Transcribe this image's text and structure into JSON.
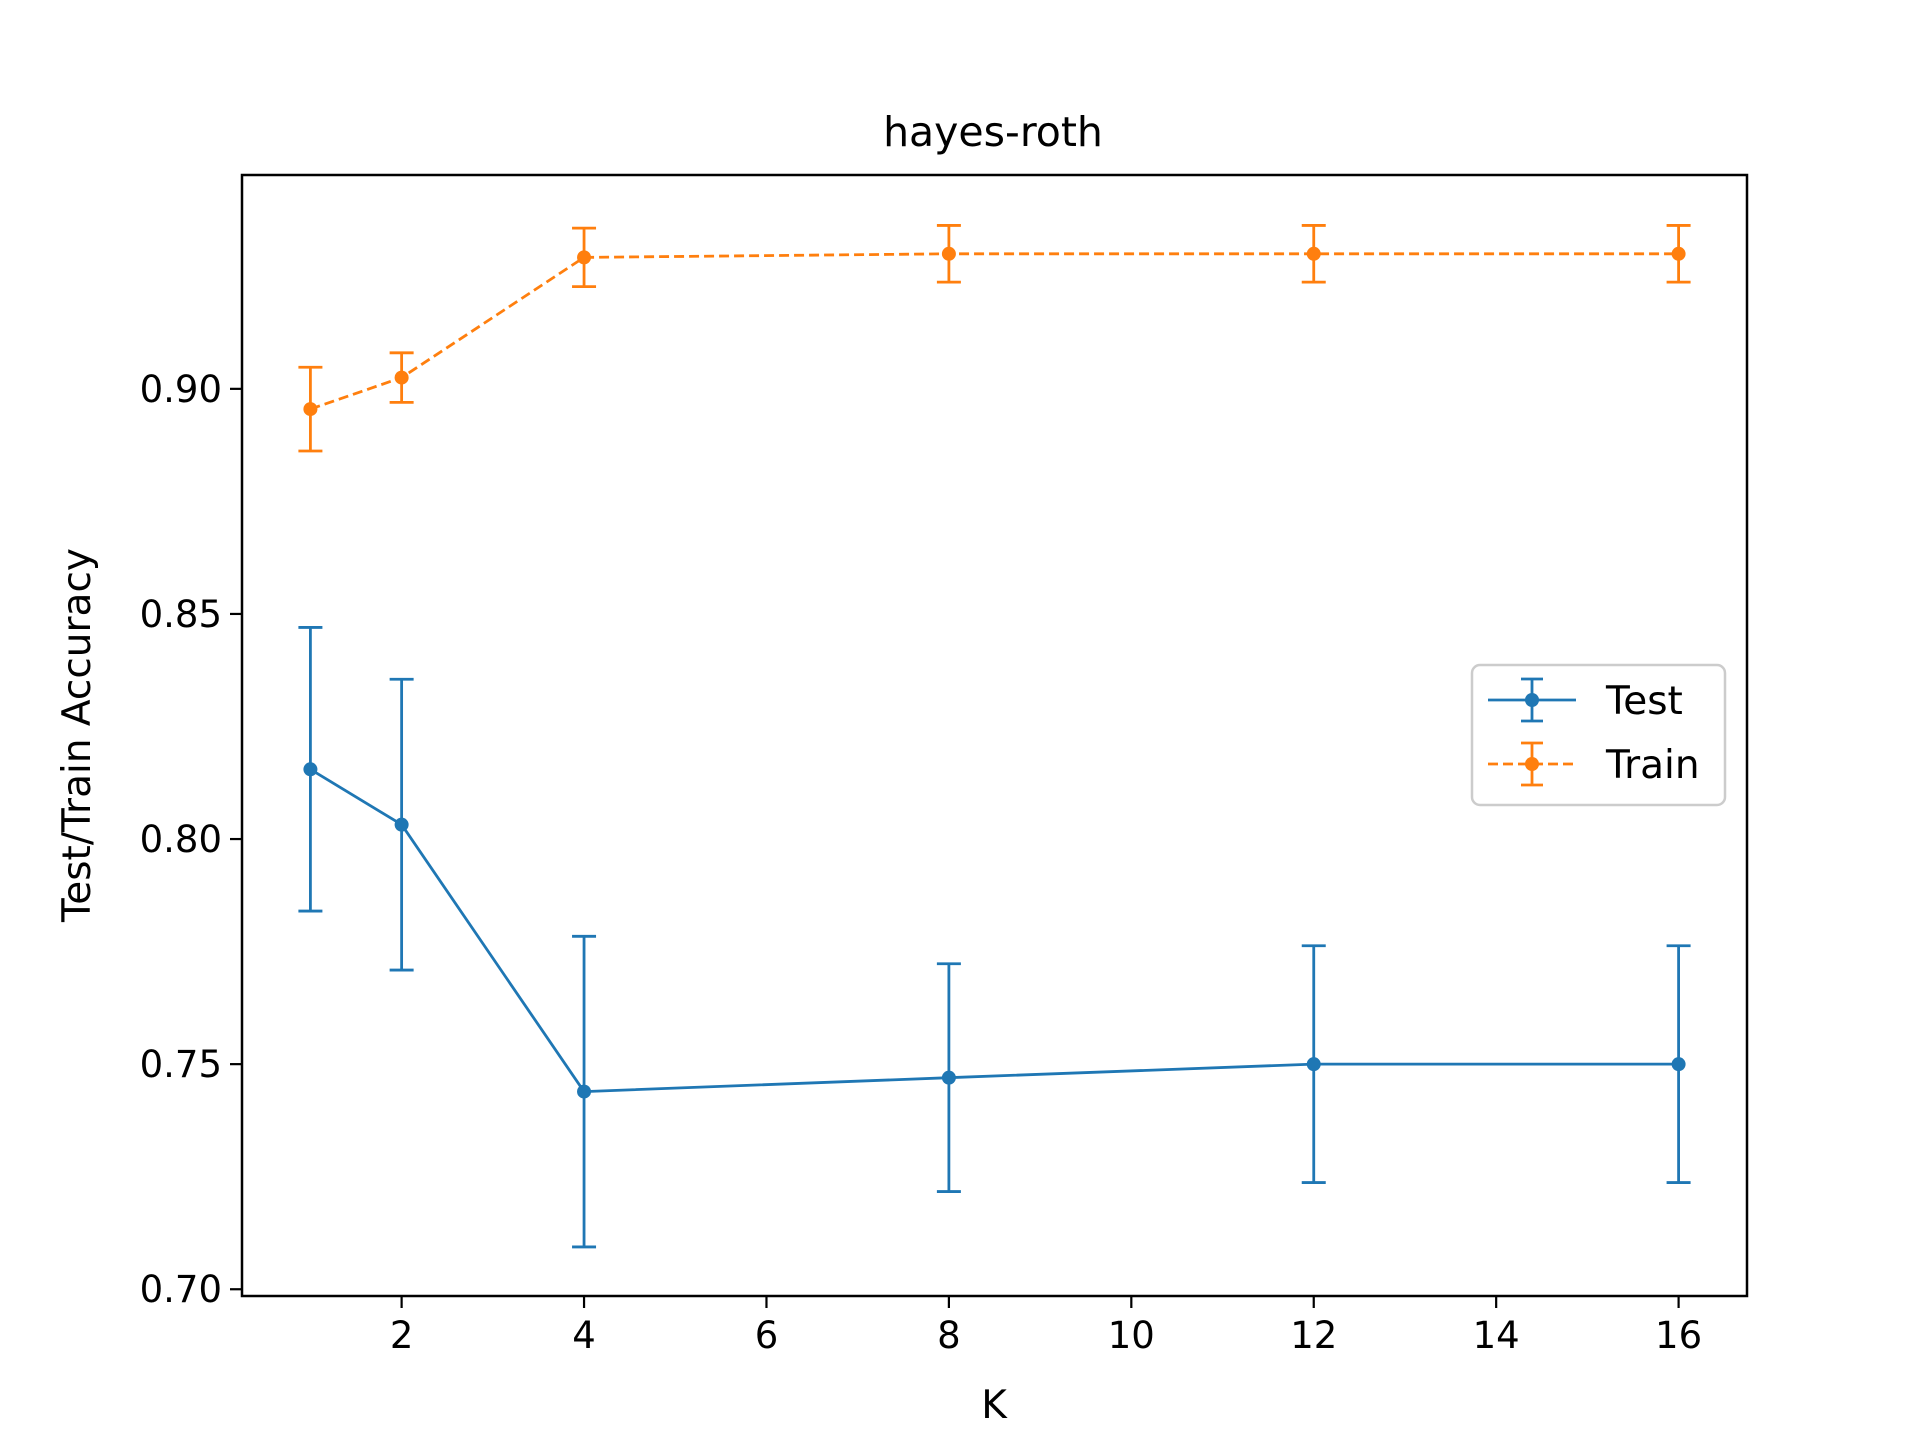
{
  "chart_data": {
    "type": "line",
    "title": "hayes-roth",
    "xlabel": "K",
    "ylabel": "Test/Train Accuracy",
    "x": [
      1,
      2,
      4,
      8,
      12,
      16
    ],
    "xlim": [
      0.25,
      16.75
    ],
    "ylim": [
      0.6985,
      0.9475
    ],
    "xticks": [
      2,
      4,
      6,
      8,
      10,
      12,
      14,
      16
    ],
    "yticks": [
      0.7,
      0.75,
      0.8,
      0.85,
      0.9
    ],
    "ytick_labels": [
      "0.70",
      "0.75",
      "0.80",
      "0.85",
      "0.90"
    ],
    "grid": false,
    "legend_position": "center-right",
    "series": [
      {
        "name": "Test",
        "values": [
          0.8155,
          0.8032,
          0.7439,
          0.747,
          0.75,
          0.75
        ],
        "error": [
          0.0315,
          0.0323,
          0.0345,
          0.0253,
          0.0263,
          0.0263
        ],
        "color": "#1f77b4",
        "linestyle": "solid"
      },
      {
        "name": "Train",
        "values": [
          0.8955,
          0.9025,
          0.9292,
          0.93,
          0.93,
          0.93
        ],
        "error": [
          0.0093,
          0.0055,
          0.0065,
          0.0063,
          0.0063,
          0.0063
        ],
        "color": "#ff7f0e",
        "linestyle": "dashed"
      }
    ]
  }
}
